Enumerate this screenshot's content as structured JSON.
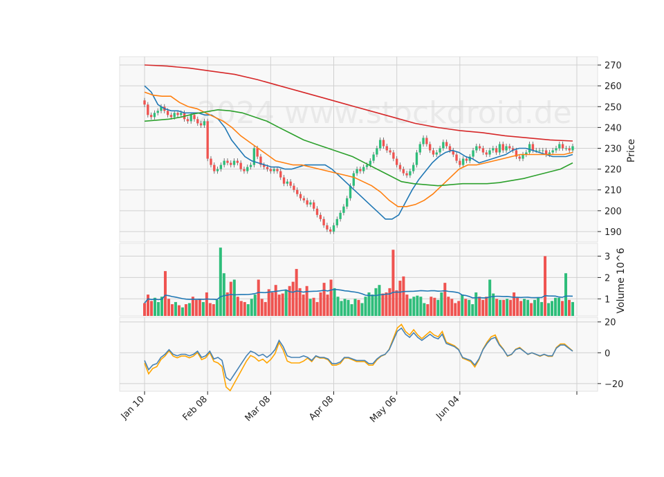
{
  "chart_data": {
    "type": "candlestick",
    "watermark": "2024 www.stockdroid.de",
    "x_tick_labels": [
      "Jan 10",
      "Feb 08",
      "Mar 08",
      "Apr 08",
      "May 06",
      "Jun 04"
    ],
    "x_tick_bar_index": [
      0,
      19,
      38,
      57,
      76,
      95
    ],
    "colors": {
      "up": "#2ebd7a",
      "down": "#ef5350",
      "ma_blue": "#1f77b4",
      "ma_orange": "#ff7f0e",
      "ma_green": "#2ca02c",
      "ma_red": "#d62728",
      "osc_blue": "#4682b4",
      "osc_orange": "#ffa500"
    },
    "price_panel": {
      "ylabel": "Price",
      "ylim": [
        185,
        274
      ],
      "yticks": [
        190,
        200,
        210,
        220,
        230,
        240,
        250,
        260,
        270
      ],
      "close": [
        251,
        246,
        245,
        247,
        248,
        250,
        248,
        246,
        245,
        247,
        246,
        247,
        244,
        243,
        246,
        244,
        242,
        241,
        243,
        225,
        222,
        219,
        220,
        222,
        224,
        223,
        222,
        224,
        223,
        220,
        219,
        221,
        222,
        230,
        226,
        222,
        221,
        220,
        219,
        220,
        219,
        216,
        213,
        214,
        212,
        210,
        208,
        206,
        205,
        203,
        204,
        201,
        198,
        196,
        193,
        191,
        190,
        193,
        196,
        199,
        202,
        206,
        212,
        218,
        220,
        219,
        221,
        222,
        224,
        227,
        230,
        234,
        231,
        229,
        228,
        225,
        222,
        220,
        218,
        217,
        219,
        222,
        228,
        232,
        235,
        232,
        229,
        227,
        228,
        230,
        233,
        231,
        229,
        227,
        224,
        222,
        225,
        224,
        226,
        229,
        231,
        230,
        228,
        227,
        229,
        230,
        228,
        232,
        229,
        231,
        230,
        229,
        226,
        225,
        227,
        228,
        232,
        229,
        229,
        229,
        229,
        227,
        228,
        229,
        230,
        232,
        230,
        230,
        229,
        231
      ],
      "ma_series": [
        {
          "color_key": "ma_blue",
          "values": [
            260,
            257,
            251,
            249,
            248,
            248,
            247,
            247,
            247,
            246,
            246,
            244,
            240,
            234,
            230,
            226,
            224,
            223,
            222,
            221,
            221,
            220,
            220,
            221,
            222,
            222,
            222,
            222,
            220,
            217,
            214,
            211,
            208,
            205,
            202,
            199,
            196,
            196,
            198,
            204,
            210,
            215,
            219,
            223,
            226,
            228,
            229,
            228,
            226,
            225,
            223,
            224,
            225,
            226,
            227,
            229,
            230,
            230,
            229,
            228,
            227,
            226,
            226,
            226,
            227
          ]
        },
        {
          "color_key": "ma_orange",
          "values": [
            257,
            255.5,
            255,
            255,
            252,
            250,
            249,
            247,
            245,
            243,
            240,
            236,
            233,
            230,
            227,
            224,
            223,
            222,
            222,
            221,
            220,
            219,
            218,
            217,
            216,
            214,
            212,
            209,
            205,
            202,
            202,
            203,
            205,
            208,
            212,
            216,
            220,
            222,
            222,
            223,
            224,
            225,
            226,
            227,
            227,
            227,
            227,
            227,
            227,
            228
          ]
        },
        {
          "color_key": "ma_green",
          "values": [
            243,
            243.5,
            244,
            245,
            246.5,
            247.5,
            248.5,
            248,
            247,
            245,
            243,
            240,
            237,
            234,
            232,
            230,
            228,
            226,
            223,
            220,
            217,
            214,
            213,
            212.5,
            212,
            212.5,
            213,
            213,
            213,
            213.5,
            214.5,
            215.5,
            217,
            218.5,
            220,
            223
          ]
        },
        {
          "color_key": "ma_red",
          "values": [
            270,
            269.5,
            268.5,
            267,
            265.5,
            263,
            260,
            257,
            254,
            251,
            248,
            245,
            242,
            240,
            238.5,
            237.5,
            236,
            235,
            234,
            233.5
          ]
        }
      ]
    },
    "volume_panel": {
      "ylabel": "Volume  10^6",
      "ylim": [
        0.2,
        3.6
      ],
      "yticks": [
        1,
        2,
        3
      ],
      "values": [
        0.8,
        1.2,
        0.9,
        1.05,
        0.85,
        1.1,
        2.3,
        1.0,
        0.75,
        0.85,
        0.7,
        0.6,
        0.75,
        0.8,
        1.1,
        0.95,
        1.0,
        0.85,
        1.3,
        0.8,
        0.75,
        0.95,
        3.4,
        2.2,
        1.3,
        1.8,
        1.9,
        1.1,
        0.9,
        0.85,
        0.75,
        1.0,
        1.2,
        1.9,
        1.0,
        0.85,
        1.45,
        1.3,
        1.65,
        1.2,
        1.25,
        1.4,
        1.6,
        1.8,
        2.4,
        1.5,
        1.2,
        1.6,
        1.0,
        1.05,
        0.85,
        1.3,
        1.75,
        1.2,
        1.9,
        1.5,
        1.1,
        0.9,
        1.0,
        0.95,
        0.75,
        1.0,
        0.95,
        0.8,
        1.1,
        1.3,
        1.2,
        1.5,
        1.65,
        1.25,
        1.3,
        1.5,
        3.3,
        1.4,
        1.85,
        2.05,
        1.2,
        1.0,
        1.1,
        1.15,
        1.1,
        0.8,
        0.75,
        1.1,
        1.05,
        0.95,
        1.3,
        1.75,
        1.1,
        1.0,
        0.8,
        0.9,
        1.2,
        1.0,
        0.95,
        0.75,
        1.3,
        1.1,
        0.95,
        1.1,
        1.9,
        1.25,
        1.0,
        0.95,
        0.95,
        1.0,
        0.95,
        1.3,
        1.05,
        0.9,
        1.0,
        0.95,
        0.8,
        0.95,
        1.05,
        0.85,
        3.0,
        0.8,
        0.9,
        1.05,
        1.05,
        0.9,
        2.2,
        0.95,
        0.85
      ]
    },
    "oscillator_panel": {
      "ylim": [
        -25,
        23
      ],
      "yticks": [
        -20,
        0,
        20
      ],
      "blue_values": [
        -5,
        -11,
        -8,
        -7,
        -3,
        -1,
        2,
        -1,
        -2,
        -1,
        -1,
        -2,
        -1,
        1,
        -3,
        -2,
        1,
        -4,
        -3,
        -5,
        -16,
        -18,
        -14,
        -10,
        -6,
        -2,
        1,
        0,
        -2,
        -1,
        -3,
        -1,
        2,
        8,
        4,
        -2,
        -3,
        -3,
        -3,
        -2,
        -3,
        -5,
        -2,
        -3,
        -3,
        -4,
        -7,
        -7,
        -6,
        -3,
        -3,
        -4,
        -5,
        -5,
        -5,
        -7,
        -7,
        -4,
        -2,
        -1,
        2,
        8,
        14,
        16,
        12,
        10,
        13,
        10,
        8,
        10,
        12,
        10,
        9,
        12,
        6,
        5,
        4,
        2,
        -3,
        -4,
        -5,
        -8,
        -4,
        2,
        6,
        9,
        10,
        5,
        2,
        -2,
        -1,
        2,
        3,
        1,
        -1,
        0,
        -1,
        -2,
        -1,
        -2,
        -2,
        3,
        5,
        5,
        3,
        1
      ]
    }
  }
}
